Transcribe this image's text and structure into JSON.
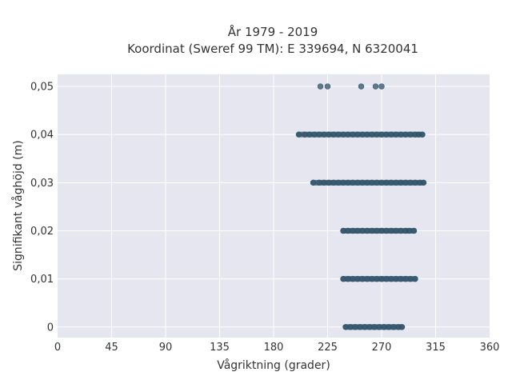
{
  "chart_data": {
    "type": "scatter",
    "title": "År 1979 - 2019",
    "subtitle": "Koordinat (Sweref 99 TM): E 339694, N 6320041",
    "xlabel": "Vågriktning (grader)",
    "ylabel": "Signifikant våghöjd (m)",
    "xlim": [
      0,
      360
    ],
    "ylim": [
      -0.0022,
      0.0525
    ],
    "x_ticks": [
      0,
      45,
      90,
      135,
      180,
      225,
      270,
      315,
      360
    ],
    "x_tick_labels": [
      "0",
      "45",
      "90",
      "135",
      "180",
      "225",
      "270",
      "315",
      "360"
    ],
    "y_ticks": [
      0,
      0.01,
      0.02,
      0.03,
      0.04,
      0.05
    ],
    "y_tick_labels": [
      "0",
      "0,01",
      "0,02",
      "0,03",
      "0,04",
      "0,05"
    ],
    "grid": true,
    "background_color": "#e5e6ef",
    "marker_color": "#2f5168",
    "bands": [
      {
        "y": 0,
        "x_min": 240,
        "x_max": 287
      },
      {
        "y": 0.01,
        "x_min": 238,
        "x_max": 298
      },
      {
        "y": 0.02,
        "x_min": 238,
        "x_max": 297
      },
      {
        "y": 0.03,
        "x_min": 213,
        "x_max": 305
      },
      {
        "y": 0.04,
        "x_min": 201,
        "x_max": 304
      }
    ],
    "points": [
      {
        "x": 240,
        "y": 0
      },
      {
        "x": 244,
        "y": 0
      },
      {
        "x": 248,
        "y": 0
      },
      {
        "x": 252,
        "y": 0
      },
      {
        "x": 256,
        "y": 0
      },
      {
        "x": 260,
        "y": 0
      },
      {
        "x": 264,
        "y": 0
      },
      {
        "x": 268,
        "y": 0
      },
      {
        "x": 272,
        "y": 0
      },
      {
        "x": 276,
        "y": 0
      },
      {
        "x": 280,
        "y": 0
      },
      {
        "x": 284,
        "y": 0
      },
      {
        "x": 287,
        "y": 0
      },
      {
        "x": 238,
        "y": 0.01
      },
      {
        "x": 242,
        "y": 0.01
      },
      {
        "x": 246,
        "y": 0.01
      },
      {
        "x": 250,
        "y": 0.01
      },
      {
        "x": 254,
        "y": 0.01
      },
      {
        "x": 258,
        "y": 0.01
      },
      {
        "x": 262,
        "y": 0.01
      },
      {
        "x": 266,
        "y": 0.01
      },
      {
        "x": 270,
        "y": 0.01
      },
      {
        "x": 274,
        "y": 0.01
      },
      {
        "x": 278,
        "y": 0.01
      },
      {
        "x": 282,
        "y": 0.01
      },
      {
        "x": 286,
        "y": 0.01
      },
      {
        "x": 290,
        "y": 0.01
      },
      {
        "x": 294,
        "y": 0.01
      },
      {
        "x": 298,
        "y": 0.01
      },
      {
        "x": 238,
        "y": 0.02
      },
      {
        "x": 242,
        "y": 0.02
      },
      {
        "x": 246,
        "y": 0.02
      },
      {
        "x": 250,
        "y": 0.02
      },
      {
        "x": 254,
        "y": 0.02
      },
      {
        "x": 258,
        "y": 0.02
      },
      {
        "x": 262,
        "y": 0.02
      },
      {
        "x": 266,
        "y": 0.02
      },
      {
        "x": 270,
        "y": 0.02
      },
      {
        "x": 274,
        "y": 0.02
      },
      {
        "x": 278,
        "y": 0.02
      },
      {
        "x": 282,
        "y": 0.02
      },
      {
        "x": 286,
        "y": 0.02
      },
      {
        "x": 290,
        "y": 0.02
      },
      {
        "x": 293,
        "y": 0.02
      },
      {
        "x": 297,
        "y": 0.02
      },
      {
        "x": 213,
        "y": 0.03
      },
      {
        "x": 218,
        "y": 0.03
      },
      {
        "x": 222,
        "y": 0.03
      },
      {
        "x": 226,
        "y": 0.03
      },
      {
        "x": 230,
        "y": 0.03
      },
      {
        "x": 234,
        "y": 0.03
      },
      {
        "x": 238,
        "y": 0.03
      },
      {
        "x": 242,
        "y": 0.03
      },
      {
        "x": 246,
        "y": 0.03
      },
      {
        "x": 250,
        "y": 0.03
      },
      {
        "x": 254,
        "y": 0.03
      },
      {
        "x": 258,
        "y": 0.03
      },
      {
        "x": 262,
        "y": 0.03
      },
      {
        "x": 266,
        "y": 0.03
      },
      {
        "x": 270,
        "y": 0.03
      },
      {
        "x": 274,
        "y": 0.03
      },
      {
        "x": 278,
        "y": 0.03
      },
      {
        "x": 282,
        "y": 0.03
      },
      {
        "x": 286,
        "y": 0.03
      },
      {
        "x": 290,
        "y": 0.03
      },
      {
        "x": 294,
        "y": 0.03
      },
      {
        "x": 298,
        "y": 0.03
      },
      {
        "x": 302,
        "y": 0.03
      },
      {
        "x": 305,
        "y": 0.03
      },
      {
        "x": 201,
        "y": 0.04
      },
      {
        "x": 206,
        "y": 0.04
      },
      {
        "x": 210,
        "y": 0.04
      },
      {
        "x": 214,
        "y": 0.04
      },
      {
        "x": 218,
        "y": 0.04
      },
      {
        "x": 222,
        "y": 0.04
      },
      {
        "x": 226,
        "y": 0.04
      },
      {
        "x": 230,
        "y": 0.04
      },
      {
        "x": 234,
        "y": 0.04
      },
      {
        "x": 238,
        "y": 0.04
      },
      {
        "x": 242,
        "y": 0.04
      },
      {
        "x": 246,
        "y": 0.04
      },
      {
        "x": 250,
        "y": 0.04
      },
      {
        "x": 254,
        "y": 0.04
      },
      {
        "x": 258,
        "y": 0.04
      },
      {
        "x": 262,
        "y": 0.04
      },
      {
        "x": 266,
        "y": 0.04
      },
      {
        "x": 270,
        "y": 0.04
      },
      {
        "x": 274,
        "y": 0.04
      },
      {
        "x": 278,
        "y": 0.04
      },
      {
        "x": 282,
        "y": 0.04
      },
      {
        "x": 286,
        "y": 0.04
      },
      {
        "x": 290,
        "y": 0.04
      },
      {
        "x": 294,
        "y": 0.04
      },
      {
        "x": 298,
        "y": 0.04
      },
      {
        "x": 301,
        "y": 0.04
      },
      {
        "x": 304,
        "y": 0.04
      },
      {
        "x": 219,
        "y": 0.05
      },
      {
        "x": 225,
        "y": 0.05
      },
      {
        "x": 253,
        "y": 0.05
      },
      {
        "x": 265,
        "y": 0.05
      },
      {
        "x": 270,
        "y": 0.05
      }
    ]
  }
}
